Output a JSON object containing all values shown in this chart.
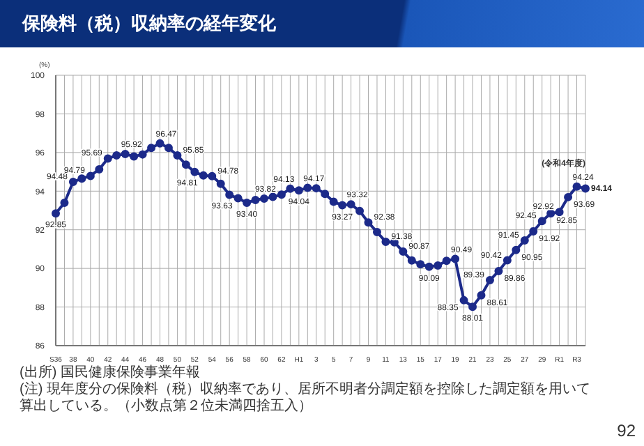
{
  "chart_data": {
    "type": "line",
    "title": "保険料（税）収納率の経年変化",
    "ylabel": "(%)",
    "categories": [
      "S36",
      null,
      "38",
      null,
      "40",
      null,
      "42",
      null,
      "44",
      null,
      "46",
      null,
      "48",
      null,
      "50",
      null,
      "52",
      null,
      "54",
      null,
      "56",
      null,
      "58",
      null,
      "60",
      null,
      "62",
      null,
      "H1",
      null,
      "3",
      null,
      "5",
      null,
      "7",
      null,
      "9",
      null,
      "11",
      null,
      "13",
      null,
      "15",
      null,
      "17",
      null,
      "19",
      null,
      "21",
      null,
      "23",
      null,
      "25",
      null,
      "27",
      null,
      "29",
      null,
      "R1",
      null,
      "R3",
      null
    ],
    "series": [
      {
        "color": "#1c2a8a",
        "values": [
          92.85,
          93.4,
          94.48,
          94.65,
          94.79,
          95.13,
          95.69,
          95.85,
          95.92,
          95.8,
          95.9,
          96.24,
          96.47,
          96.24,
          95.85,
          95.37,
          94.99,
          94.81,
          94.78,
          94.38,
          93.81,
          93.63,
          93.4,
          93.54,
          93.61,
          93.7,
          93.82,
          94.13,
          94.04,
          94.17,
          94.15,
          93.86,
          93.45,
          93.27,
          93.32,
          92.97,
          92.38,
          91.88,
          91.38,
          91.35,
          90.87,
          90.41,
          90.21,
          90.09,
          90.15,
          90.39,
          90.49,
          88.35,
          88.01,
          88.61,
          89.39,
          89.86,
          90.42,
          90.95,
          91.45,
          91.92,
          92.45,
          92.85,
          92.92,
          93.69,
          94.24,
          94.14
        ],
        "value_labels": [
          "92.85",
          null,
          "94.48",
          null,
          "94.79",
          null,
          "95.69",
          null,
          "95.92",
          null,
          null,
          null,
          "96.47",
          null,
          "95.85",
          null,
          null,
          "94.81",
          "94.78",
          null,
          null,
          "93.63",
          "93.40",
          null,
          null,
          null,
          "93.82",
          "94.13",
          "94.04",
          "94.17",
          null,
          null,
          null,
          "93.27",
          "93.32",
          null,
          "92.38",
          null,
          "91.38",
          null,
          "90.87",
          null,
          null,
          "90.09",
          null,
          null,
          "90.49",
          "88.35",
          "88.01",
          "88.61",
          "89.39",
          "89.86",
          "90.42",
          "90.95",
          "91.45",
          "91.92",
          "92.45",
          "92.85",
          "92.92",
          "93.69",
          "94.24",
          "94.14"
        ]
      }
    ],
    "ylim": [
      86,
      100
    ],
    "yticks": [
      86,
      88,
      90,
      92,
      94,
      96,
      98,
      100
    ],
    "grid": true,
    "marker": "circle",
    "line_style": "solid",
    "legend": false,
    "annotations": [
      "(出所) 国民健康保険事業年報",
      "(注) 現年度分の保険料（税）収納率であり、居所不明者分調定額を控除した調定額を用いて算出している。（小数点第２位未満四捨五入）",
      "92",
      "(令和4年度)"
    ]
  }
}
